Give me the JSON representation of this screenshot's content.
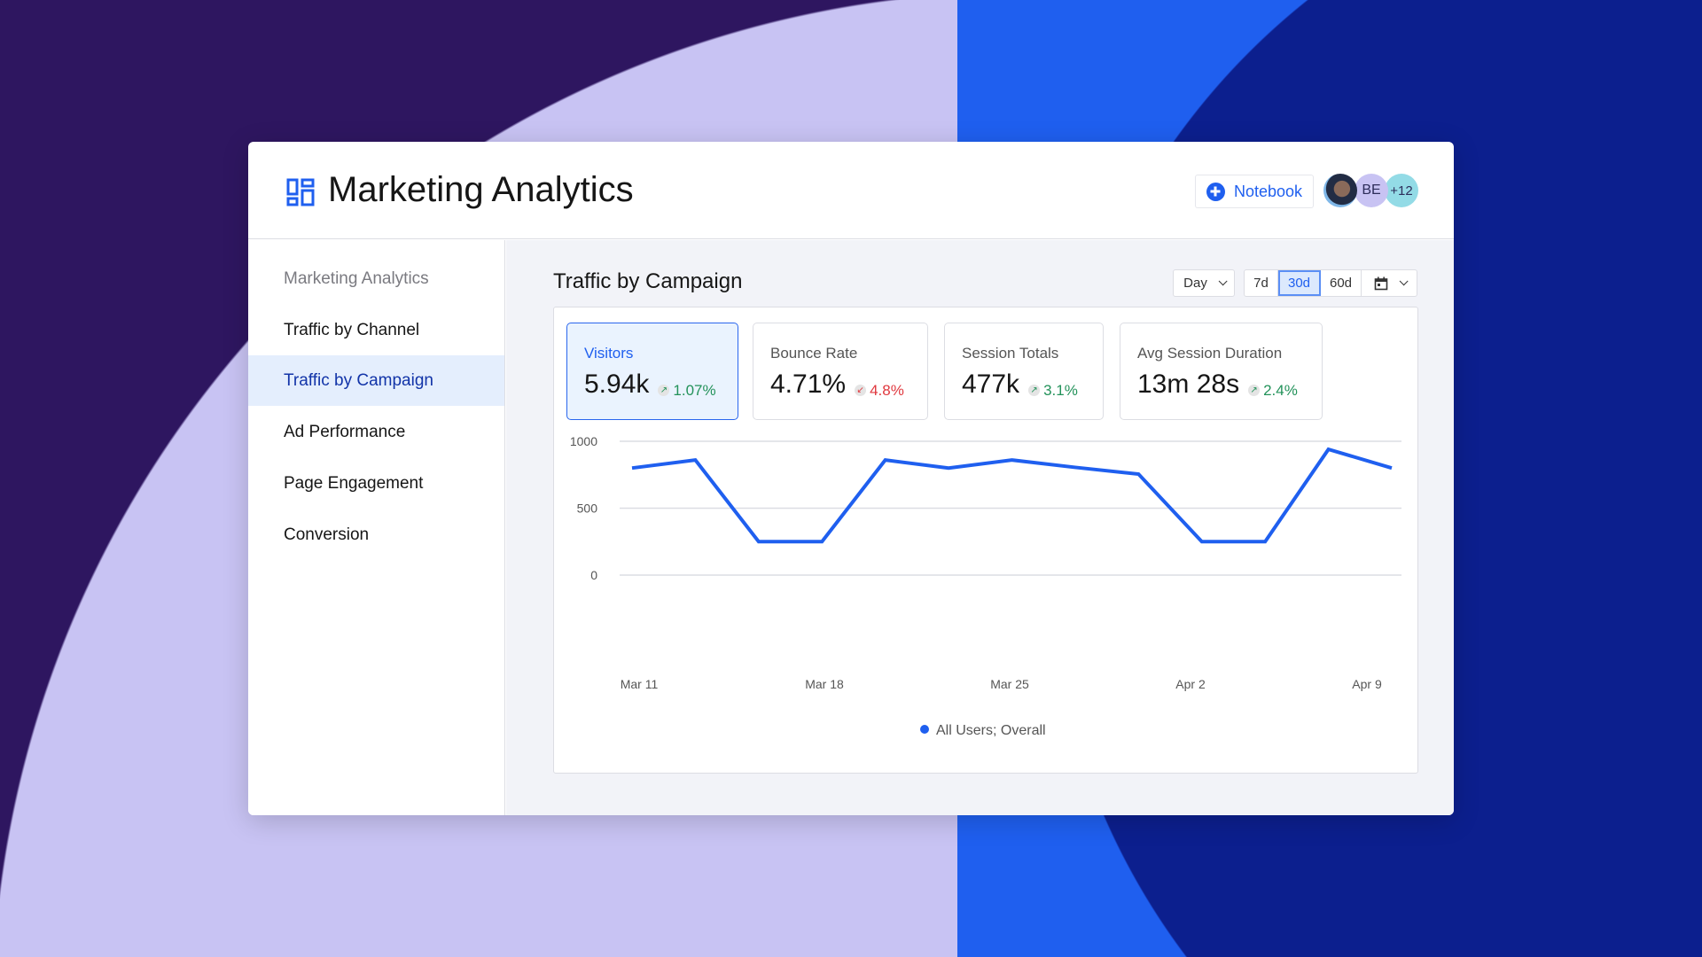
{
  "header": {
    "title": "Marketing Analytics",
    "notebook_label": "Notebook",
    "avatars": [
      "",
      "BE",
      "+12"
    ]
  },
  "sidebar": {
    "items": [
      {
        "label": "Marketing Analytics",
        "state": "muted"
      },
      {
        "label": "Traffic by Channel",
        "state": "normal"
      },
      {
        "label": "Traffic by Campaign",
        "state": "active"
      },
      {
        "label": "Ad Performance",
        "state": "normal"
      },
      {
        "label": "Page Engagement",
        "state": "normal"
      },
      {
        "label": "Conversion",
        "state": "normal"
      }
    ]
  },
  "main": {
    "title": "Traffic by Campaign",
    "granularity": "Day",
    "ranges": [
      "7d",
      "30d",
      "60d"
    ],
    "selected_range": "30d",
    "metrics": [
      {
        "label": "Visitors",
        "value": "5.94k",
        "delta": "1.07%",
        "direction": "up",
        "selected": true
      },
      {
        "label": "Bounce Rate",
        "value": "4.71%",
        "delta": "4.8%",
        "direction": "down",
        "selected": false
      },
      {
        "label": "Session Totals",
        "value": "477k",
        "delta": "3.1%",
        "direction": "up",
        "selected": false
      },
      {
        "label": "Avg Session Duration",
        "value": "13m 28s",
        "delta": "2.4%",
        "direction": "up",
        "selected": false
      }
    ]
  },
  "colors": {
    "accent": "#1f5fef",
    "up": "#23925a",
    "down": "#e0383e"
  },
  "chart_data": {
    "type": "line",
    "x_tick_labels": [
      "Mar 11",
      "Mar 18",
      "Mar 25",
      "Apr 2",
      "Apr 9"
    ],
    "y_ticks": [
      0,
      500,
      1000
    ],
    "ylim": [
      0,
      1000
    ],
    "grid": true,
    "legend_placement": "bottom",
    "series": [
      {
        "name": "All Users; Overall",
        "color": "#1f5fef",
        "values": [
          800,
          860,
          250,
          250,
          860,
          800,
          860,
          805,
          755,
          250,
          250,
          940,
          800
        ]
      }
    ]
  }
}
